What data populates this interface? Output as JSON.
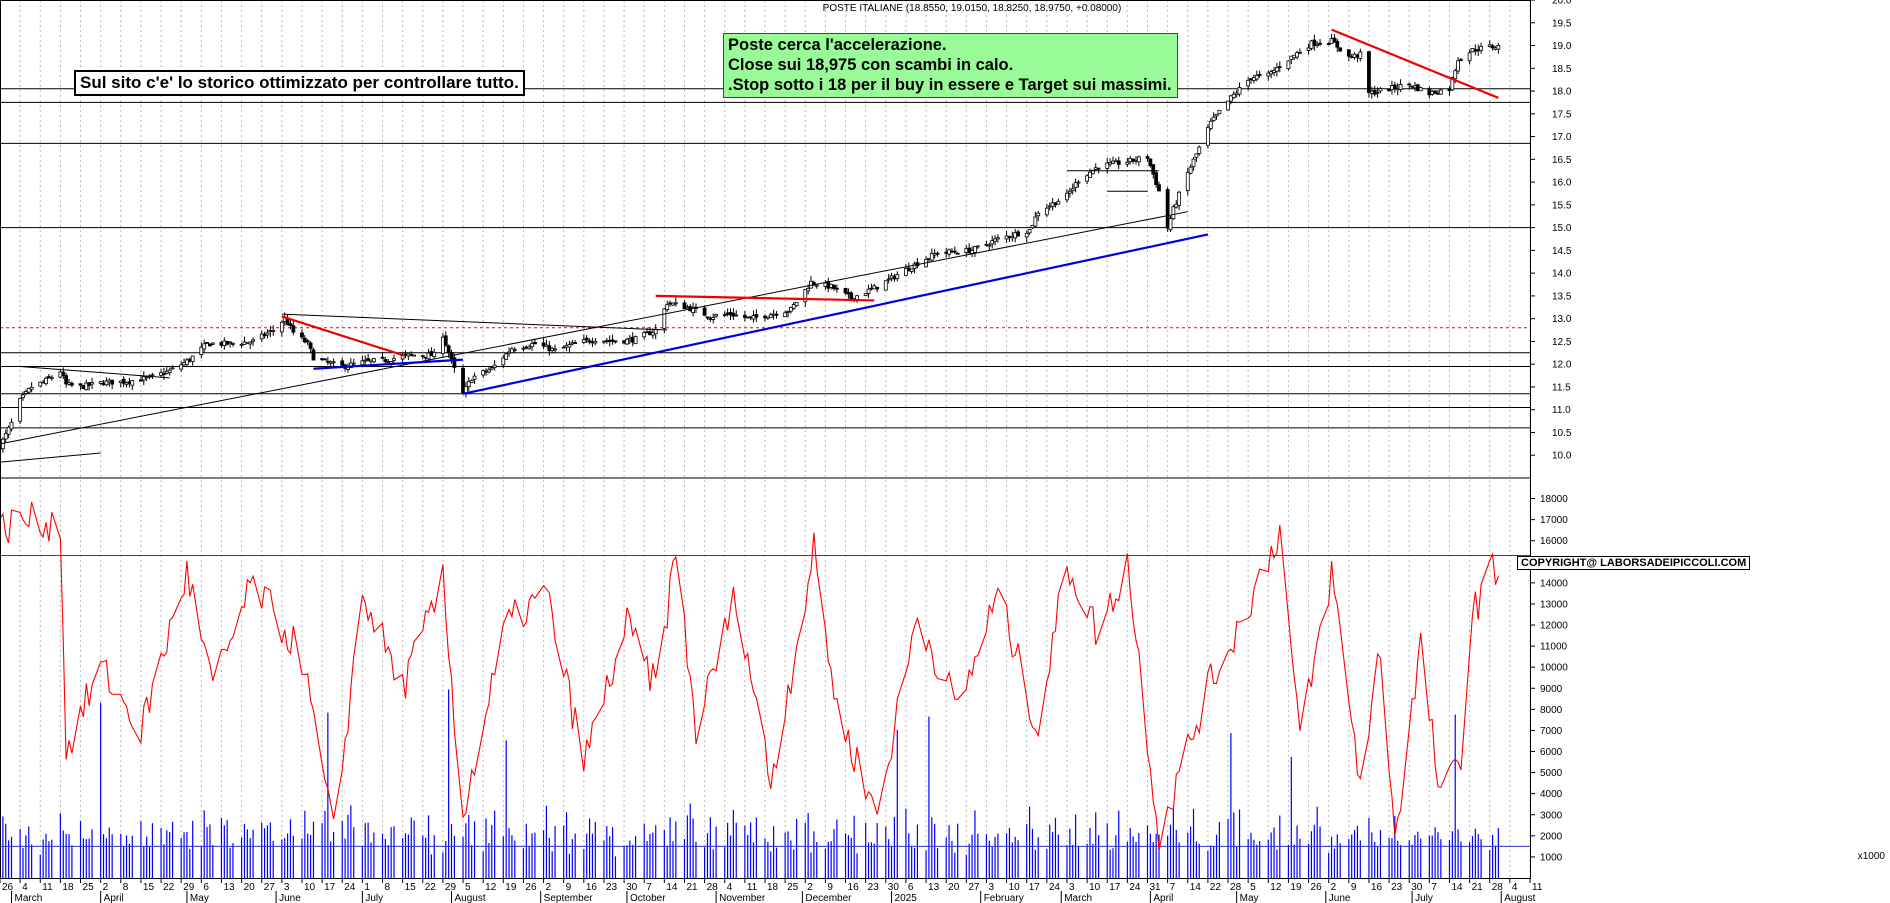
{
  "header": {
    "title": "POSTE ITALIANE (18.8550, 19.0150, 18.8250, 18.9750, +0.08000)"
  },
  "notes": {
    "main": "Sul sito c'e' lo storico ottimizzato per controllare tutto.",
    "comment_lines": [
      "Poste cerca l'accelerazione.",
      "Close sui 18,975 con scambi in calo.",
      ".Stop sotto i 18 per il buy in essere e Target sui massimi."
    ],
    "copyright": "COPYRIGHT@ LABORSADEIPICCOLI.COM"
  },
  "price_axis": {
    "ticks": [
      "10.0",
      "10.5",
      "11.0",
      "11.5",
      "12.0",
      "12.5",
      "13.0",
      "13.5",
      "14.0",
      "14.5",
      "15.0",
      "15.5",
      "16.0",
      "16.5",
      "17.0",
      "17.5",
      "18.0",
      "18.5",
      "19.0",
      "19.5",
      "20.0"
    ]
  },
  "volume_axis": {
    "ticks": [
      "1000",
      "2000",
      "3000",
      "4000",
      "5000",
      "6000",
      "7000",
      "8000",
      "9000",
      "10000",
      "11000",
      "12000",
      "13000",
      "14000",
      "15000",
      "16000",
      "17000",
      "18000"
    ],
    "unit": "x1000"
  },
  "time_axis": {
    "day_ticks": [
      "26",
      "4",
      "11",
      "18",
      "25",
      "2",
      "8",
      "15",
      "22",
      "29",
      "6",
      "13",
      "20",
      "27",
      "3",
      "10",
      "17",
      "24",
      "1",
      "8",
      "15",
      "22",
      "29",
      "5",
      "12",
      "19",
      "26",
      "2",
      "9",
      "16",
      "23",
      "30",
      "7",
      "14",
      "21",
      "28",
      "4",
      "11",
      "18",
      "25",
      "2",
      "9",
      "16",
      "23",
      "30",
      "6",
      "13",
      "20",
      "27",
      "3",
      "10",
      "17",
      "24",
      "3",
      "10",
      "17",
      "24",
      "31",
      "7",
      "14",
      "22",
      "28",
      "5",
      "12",
      "19",
      "26",
      "2",
      "9",
      "16",
      "23",
      "30",
      "7",
      "14",
      "21",
      "28",
      "4",
      "11"
    ],
    "months": [
      "March",
      "April",
      "May",
      "June",
      "July",
      "August",
      "September",
      "October",
      "November",
      "December",
      "2025",
      "February",
      "March",
      "April",
      "May",
      "June",
      "July",
      "August"
    ]
  },
  "colors": {
    "up_candle": "#ffffff",
    "down_candle": "#000000",
    "trendline_blue": "#0000dd",
    "trendline_red": "#ee0000",
    "indicator": "#ff0000",
    "volume": "#0000ff",
    "comment_bg": "#98fb98"
  },
  "chart_data": [
    {
      "type": "candlestick",
      "title": "POSTE ITALIANE (18.8550, 19.0150, 18.8250, 18.9750, +0.08000)",
      "ylim": [
        9.5,
        20.0
      ],
      "y_ticks": [
        10.0,
        10.5,
        11.0,
        11.5,
        12.0,
        12.5,
        13.0,
        13.5,
        14.0,
        14.5,
        15.0,
        15.5,
        16.0,
        16.5,
        17.0,
        17.5,
        18.0,
        18.5,
        19.0,
        19.5,
        20.0
      ],
      "last": {
        "open": 18.855,
        "high": 19.015,
        "low": 18.825,
        "close": 18.975,
        "change": 0.08
      },
      "x_range": [
        "2024-02-26",
        "2025-08-11"
      ],
      "close_path": [
        [
          "2024-02-26",
          10.2
        ],
        [
          "2024-03-01",
          10.7
        ],
        [
          "2024-03-04",
          11.2
        ],
        [
          "2024-03-08",
          11.5
        ],
        [
          "2024-03-12",
          11.6
        ],
        [
          "2024-03-18",
          11.85
        ],
        [
          "2024-03-20",
          11.55
        ],
        [
          "2024-03-25",
          11.5
        ],
        [
          "2024-04-02",
          11.6
        ],
        [
          "2024-04-10",
          11.62
        ],
        [
          "2024-04-18",
          11.7
        ],
        [
          "2024-04-25",
          11.85
        ],
        [
          "2024-05-02",
          12.1
        ],
        [
          "2024-05-08",
          12.45
        ],
        [
          "2024-05-16",
          12.45
        ],
        [
          "2024-05-24",
          12.5
        ],
        [
          "2024-05-31",
          12.75
        ],
        [
          "2024-06-04",
          13.0
        ],
        [
          "2024-06-07",
          12.7
        ],
        [
          "2024-06-12",
          12.45
        ],
        [
          "2024-06-14",
          12.15
        ],
        [
          "2024-06-18",
          12.05
        ],
        [
          "2024-06-24",
          11.95
        ],
        [
          "2024-07-02",
          12.05
        ],
        [
          "2024-07-10",
          12.1
        ],
        [
          "2024-07-18",
          12.2
        ],
        [
          "2024-07-26",
          12.2
        ],
        [
          "2024-07-29",
          12.65
        ],
        [
          "2024-07-31",
          12.25
        ],
        [
          "2024-08-05",
          11.35
        ],
        [
          "2024-08-08",
          11.7
        ],
        [
          "2024-08-15",
          11.9
        ],
        [
          "2024-08-22",
          12.35
        ],
        [
          "2024-08-30",
          12.45
        ],
        [
          "2024-09-06",
          12.3
        ],
        [
          "2024-09-13",
          12.45
        ],
        [
          "2024-09-20",
          12.55
        ],
        [
          "2024-09-27",
          12.5
        ],
        [
          "2024-10-04",
          12.55
        ],
        [
          "2024-10-11",
          12.75
        ],
        [
          "2024-10-15",
          13.35
        ],
        [
          "2024-10-22",
          13.25
        ],
        [
          "2024-10-30",
          13.05
        ],
        [
          "2024-11-06",
          13.1
        ],
        [
          "2024-11-13",
          13.0
        ],
        [
          "2024-11-20",
          13.1
        ],
        [
          "2024-11-27",
          13.2
        ],
        [
          "2024-12-04",
          13.8
        ],
        [
          "2024-12-11",
          13.7
        ],
        [
          "2024-12-18",
          13.45
        ],
        [
          "2024-12-27",
          13.7
        ],
        [
          "2025-01-08",
          14.15
        ],
        [
          "2025-01-17",
          14.45
        ],
        [
          "2025-01-29",
          14.5
        ],
        [
          "2025-02-07",
          14.75
        ],
        [
          "2025-02-18",
          14.95
        ],
        [
          "2025-02-21",
          15.35
        ],
        [
          "2025-03-03",
          15.7
        ],
        [
          "2025-03-07",
          16.05
        ],
        [
          "2025-03-14",
          16.35
        ],
        [
          "2025-03-24",
          16.45
        ],
        [
          "2025-03-31",
          16.55
        ],
        [
          "2025-04-04",
          15.8
        ],
        [
          "2025-04-07",
          15.0
        ],
        [
          "2025-04-09",
          15.4
        ],
        [
          "2025-04-14",
          16.2
        ],
        [
          "2025-04-22",
          17.3
        ],
        [
          "2025-04-29",
          17.85
        ],
        [
          "2025-05-06",
          18.3
        ],
        [
          "2025-05-12",
          18.35
        ],
        [
          "2025-05-19",
          18.7
        ],
        [
          "2025-05-27",
          19.05
        ],
        [
          "2025-06-03",
          19.1
        ],
        [
          "2025-06-09",
          18.75
        ],
        [
          "2025-06-13",
          18.8
        ],
        [
          "2025-06-16",
          17.95
        ],
        [
          "2025-06-23",
          18.05
        ],
        [
          "2025-06-30",
          18.15
        ],
        [
          "2025-07-07",
          17.95
        ],
        [
          "2025-07-14",
          18.05
        ],
        [
          "2025-07-17",
          18.7
        ],
        [
          "2025-07-22",
          18.9
        ],
        [
          "2025-07-28",
          18.975
        ]
      ],
      "horizontal_lines": [
        10.6,
        11.05,
        11.35,
        11.95,
        12.25,
        15.0,
        16.85,
        17.75,
        18.05
      ],
      "dashed_lines": [
        12.8
      ],
      "trendlines": [
        {
          "color": "black",
          "from": [
            "2024-02-26",
            10.25
          ],
          "to": [
            "2025-04-14",
            15.35
          ]
        },
        {
          "color": "black",
          "from": [
            "2024-02-26",
            9.85
          ],
          "to": [
            "2024-04-01",
            10.05
          ]
        },
        {
          "color": "black",
          "from": [
            "2024-03-04",
            11.95
          ],
          "to": [
            "2024-04-25",
            11.7
          ]
        },
        {
          "color": "black",
          "from": [
            "2024-06-03",
            13.1
          ],
          "to": [
            "2024-10-15",
            12.75
          ]
        },
        {
          "color": "black",
          "from": [
            "2025-03-17",
            15.8
          ],
          "to": [
            "2025-03-31",
            15.8
          ]
        },
        {
          "color": "black",
          "from": [
            "2025-03-03",
            16.25
          ],
          "to": [
            "2025-04-04",
            16.25
          ]
        },
        {
          "color": "blue",
          "from": [
            "2024-06-14",
            11.9
          ],
          "to": [
            "2024-08-05",
            12.1
          ]
        },
        {
          "color": "blue",
          "from": [
            "2024-08-05",
            11.35
          ],
          "to": [
            "2025-04-21",
            14.85
          ]
        },
        {
          "color": "red",
          "from": [
            "2024-06-03",
            13.05
          ],
          "to": [
            "2024-07-15",
            12.2
          ]
        },
        {
          "color": "red",
          "from": [
            "2024-10-11",
            13.5
          ],
          "to": [
            "2024-12-26",
            13.4
          ]
        },
        {
          "color": "red",
          "from": [
            "2025-06-03",
            19.35
          ],
          "to": [
            "2025-07-31",
            17.85
          ]
        }
      ]
    },
    {
      "type": "bar+line",
      "series": [
        {
          "type": "bar",
          "label": "volume x1000",
          "sample_values": [
            1800,
            2300,
            2000,
            2500,
            2800,
            2200,
            1900,
            2400,
            2100,
            2600,
            1700,
            2300
          ]
        },
        {
          "type": "line",
          "indicator_path": [
            [
              "2024-02-26",
              16500
            ],
            [
              "2024-03-04",
              17000
            ],
            [
              "2024-03-18",
              16800
            ],
            [
              "2024-03-20",
              6000
            ],
            [
              "2024-04-01",
              10000
            ],
            [
              "2024-04-15",
              7000
            ],
            [
              "2024-05-01",
              14500
            ],
            [
              "2024-05-10",
              9000
            ],
            [
              "2024-05-24",
              14000
            ],
            [
              "2024-06-10",
              10500
            ],
            [
              "2024-06-21",
              2000
            ],
            [
              "2024-07-01",
              13500
            ],
            [
              "2024-07-15",
              9000
            ],
            [
              "2024-07-29",
              14000
            ],
            [
              "2024-08-05",
              3000
            ],
            [
              "2024-08-20",
              12000
            ],
            [
              "2024-09-03",
              13500
            ],
            [
              "2024-09-16",
              5500
            ],
            [
              "2024-10-01",
              12000
            ],
            [
              "2024-10-11",
              9000
            ],
            [
              "2024-10-18",
              15500
            ],
            [
              "2024-10-25",
              7000
            ],
            [
              "2024-11-08",
              13500
            ],
            [
              "2024-11-20",
              4500
            ],
            [
              "2024-12-05",
              15500
            ],
            [
              "2024-12-13",
              8000
            ],
            [
              "2024-12-27",
              3000
            ],
            [
              "2025-01-10",
              12500
            ],
            [
              "2025-01-24",
              8000
            ],
            [
              "2025-02-07",
              13500
            ],
            [
              "2025-02-21",
              7000
            ],
            [
              "2025-03-03",
              15000
            ],
            [
              "2025-03-14",
              11500
            ],
            [
              "2025-03-24",
              15000
            ],
            [
              "2025-04-04",
              2000
            ],
            [
              "2025-04-21",
              9000
            ],
            [
              "2025-05-02",
              12000
            ],
            [
              "2025-05-16",
              16500
            ],
            [
              "2025-05-23",
              6500
            ],
            [
              "2025-06-03",
              14500
            ],
            [
              "2025-06-13",
              4500
            ],
            [
              "2025-06-20",
              11000
            ],
            [
              "2025-06-25",
              2000
            ],
            [
              "2025-07-04",
              11000
            ],
            [
              "2025-07-11",
              3500
            ],
            [
              "2025-07-18",
              6000
            ],
            [
              "2025-07-22",
              12500
            ],
            [
              "2025-07-28",
              14500
            ]
          ]
        }
      ],
      "ylim": [
        0,
        18500
      ],
      "y_ticks": [
        1000,
        2000,
        3000,
        4000,
        5000,
        6000,
        7000,
        8000,
        9000,
        10000,
        11000,
        12000,
        13000,
        14000,
        15000,
        16000,
        17000,
        18000
      ],
      "horizontal_lines": [
        15300,
        1500
      ]
    }
  ]
}
